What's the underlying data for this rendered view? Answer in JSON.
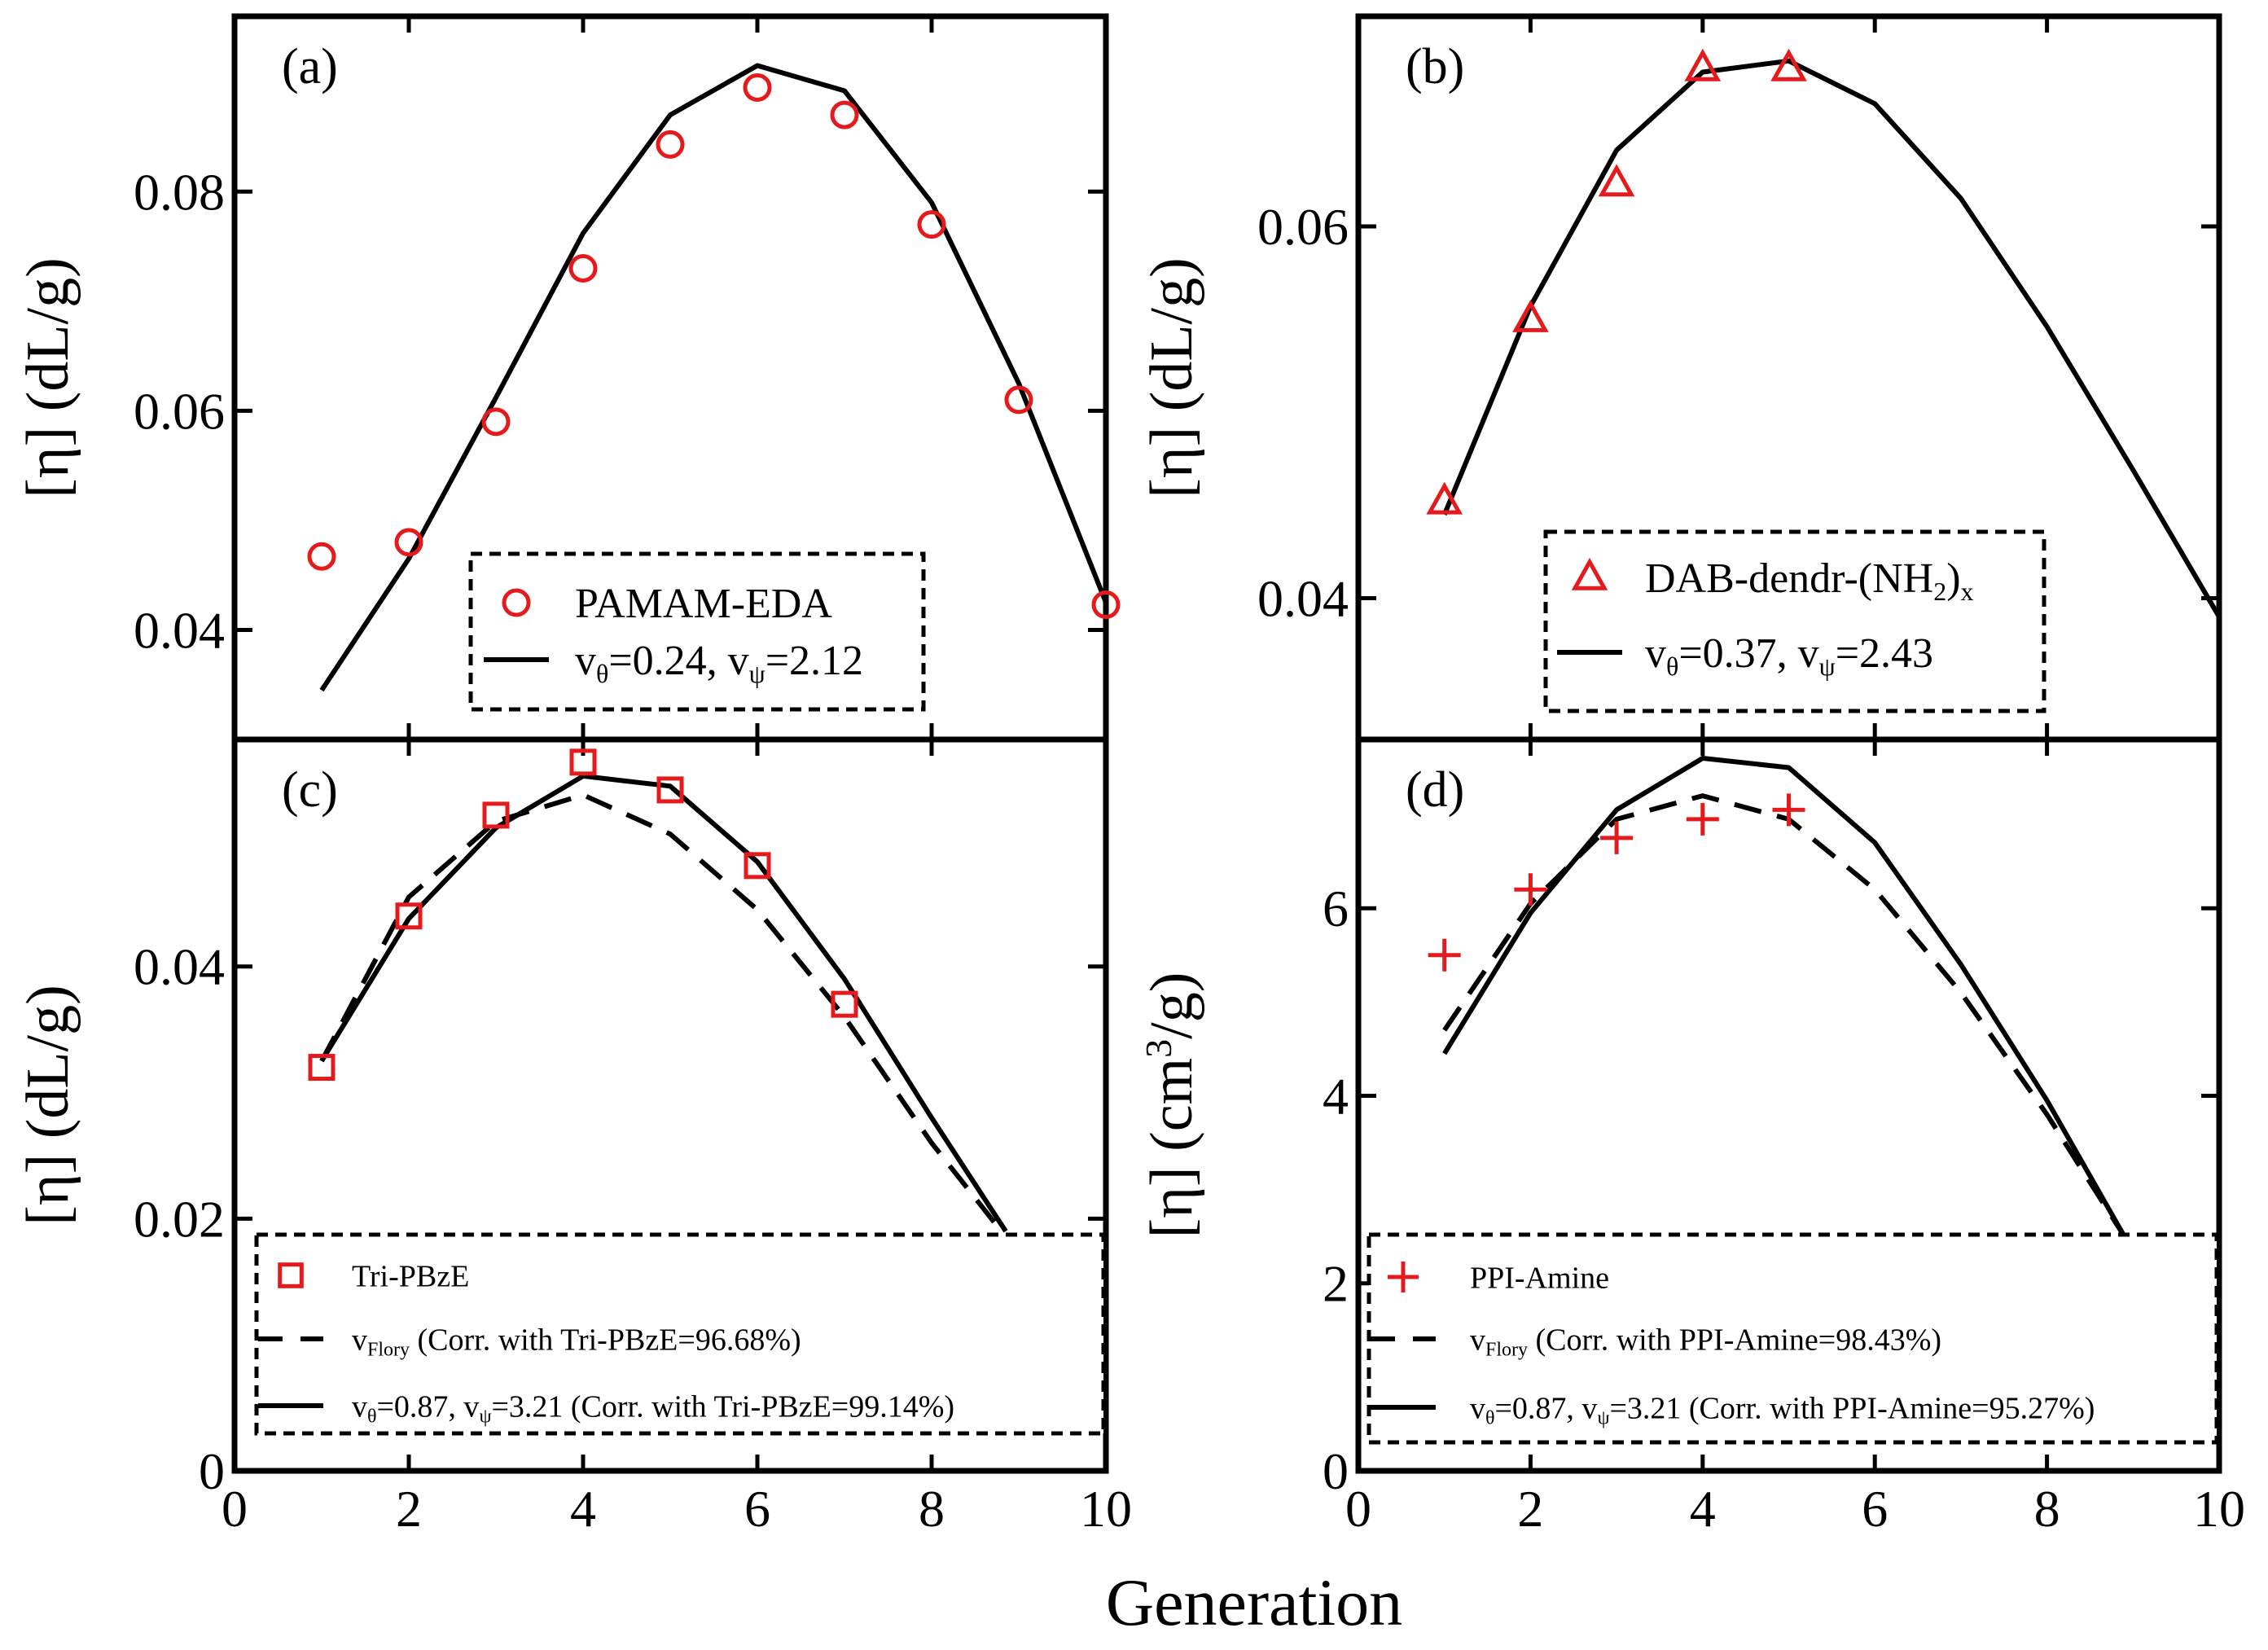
{
  "figure": {
    "shared_xlabel": "Generation"
  },
  "chart_data": [
    {
      "id": "a",
      "type": "line",
      "panel_label": "(a)",
      "ylabel_main": "[η] (dL/g)",
      "xlim": [
        0,
        10
      ],
      "ylim": [
        0.03,
        0.096
      ],
      "yticks": [
        {
          "value": 0.04,
          "label": "0.04"
        },
        {
          "value": 0.06,
          "label": "0.06"
        },
        {
          "value": 0.08,
          "label": "0.08"
        }
      ],
      "xticks": [],
      "series": [
        {
          "name": "PAMAM-EDA",
          "kind": "scatter",
          "marker": "circle",
          "color": "#e41a1c",
          "x": [
            1,
            2,
            3,
            4,
            5,
            6,
            7,
            8,
            9,
            10
          ],
          "y": [
            0.0467,
            0.048,
            0.059,
            0.073,
            0.0843,
            0.0895,
            0.087,
            0.077,
            0.061,
            0.0423
          ]
        },
        {
          "name": "νθ=0.24, νψ=2.12",
          "kind": "line",
          "dash": "solid",
          "color": "#000000",
          "x": [
            1,
            2,
            3,
            4,
            5,
            6,
            7,
            8,
            9,
            10
          ],
          "y": [
            0.0345,
            0.0465,
            0.0612,
            0.0762,
            0.087,
            0.0915,
            0.0892,
            0.079,
            0.0625,
            0.0425
          ]
        }
      ],
      "legend": {
        "placement": "bottom-center",
        "entries": [
          {
            "symbol": "circle",
            "text": "PAMAM-EDA"
          },
          {
            "symbol": "solid",
            "main": "v",
            "sub1": "θ",
            "mid": "=0.24, v",
            "sub2": "ψ",
            "tail": "=2.12"
          }
        ]
      }
    },
    {
      "id": "b",
      "type": "line",
      "panel_label": "(b)",
      "ylabel_main": "[η] (dL/g)",
      "xlim": [
        0,
        10
      ],
      "ylim": [
        0.0324,
        0.0713
      ],
      "yticks": [
        {
          "value": 0.04,
          "label": "0.04"
        },
        {
          "value": 0.06,
          "label": "0.06"
        }
      ],
      "xticks": [],
      "series": [
        {
          "name": "DAB-dendr-(NH2)x",
          "kind": "scatter",
          "marker": "triangle",
          "color": "#e41a1c",
          "x": [
            1,
            2,
            3,
            4,
            5
          ],
          "y": [
            0.0452,
            0.055,
            0.0623,
            0.0685,
            0.0685
          ]
        },
        {
          "name": "νθ=0.37, νψ=2.43",
          "kind": "line",
          "dash": "solid",
          "color": "#000000",
          "x": [
            1,
            2,
            3,
            4,
            5,
            6,
            7,
            8,
            9,
            10
          ],
          "y": [
            0.0445,
            0.0557,
            0.0641,
            0.0683,
            0.0689,
            0.0666,
            0.0615,
            0.0546,
            0.0469,
            0.039
          ]
        }
      ],
      "legend": {
        "placement": "bottom-center",
        "entries": [
          {
            "symbol": "triangle",
            "main": "DAB-dendr-(NH",
            "sub1": "2",
            "tail": ")",
            "sub2": "x"
          },
          {
            "symbol": "solid",
            "main": "v",
            "sub1": "θ",
            "mid": "=0.37, v",
            "sub2": "ψ",
            "tail": "=2.43"
          }
        ]
      }
    },
    {
      "id": "c",
      "type": "line",
      "panel_label": "(c)",
      "ylabel_main": "[η] (dL/g)",
      "xlim": [
        0,
        10
      ],
      "ylim": [
        0,
        0.058
      ],
      "yticks": [
        {
          "value": 0,
          "label": "0"
        },
        {
          "value": 0.02,
          "label": "0.02"
        },
        {
          "value": 0.04,
          "label": "0.04"
        }
      ],
      "xticks": [
        {
          "value": 0,
          "label": "0"
        },
        {
          "value": 2,
          "label": "2"
        },
        {
          "value": 4,
          "label": "4"
        },
        {
          "value": 6,
          "label": "6"
        },
        {
          "value": 8,
          "label": "8"
        },
        {
          "value": 10,
          "label": "10"
        }
      ],
      "series": [
        {
          "name": "Tri-PBzE",
          "kind": "scatter",
          "marker": "square",
          "color": "#e41a1c",
          "x": [
            1,
            2,
            3,
            4,
            5,
            6,
            7
          ],
          "y": [
            0.032,
            0.044,
            0.052,
            0.0562,
            0.054,
            0.048,
            0.037
          ]
        },
        {
          "name": "vFlory",
          "kind": "line",
          "dash": "dashed",
          "color": "#000000",
          "x": [
            1,
            2,
            3,
            4,
            5,
            6,
            7,
            8,
            8.8
          ],
          "y": [
            0.0325,
            0.0455,
            0.0515,
            0.0536,
            0.0505,
            0.0445,
            0.036,
            0.026,
            0.019
          ]
        },
        {
          "name": "νθ=0.87, νψ=3.21",
          "kind": "line",
          "dash": "solid",
          "color": "#000000",
          "x": [
            1,
            2,
            3,
            4,
            5,
            6,
            7,
            8,
            8.85
          ],
          "y": [
            0.0325,
            0.0438,
            0.051,
            0.0551,
            0.0543,
            0.0483,
            0.039,
            0.028,
            0.019
          ]
        }
      ],
      "legend": {
        "placement": "bottom",
        "entries": [
          {
            "symbol": "square",
            "text": "Tri-PBzE"
          },
          {
            "symbol": "dashed",
            "main": "v",
            "sub1": "Flory",
            "tail": " (Corr. with Tri-PBzE=96.68%)"
          },
          {
            "symbol": "solid",
            "main": "v",
            "sub1": "θ",
            "mid": "=0.87, v",
            "sub2": "ψ",
            "tail": "=3.21 (Corr. with Tri-PBzE=99.14%)"
          }
        ]
      }
    },
    {
      "id": "d",
      "type": "line",
      "panel_label": "(d)",
      "ylabel_main": "[η] (cm",
      "ylabel_sup": "3",
      "ylabel_tail": "/g)",
      "xlim": [
        0,
        10
      ],
      "ylim": [
        0,
        7.8
      ],
      "yticks": [
        {
          "value": 0,
          "label": "0"
        },
        {
          "value": 2,
          "label": "2"
        },
        {
          "value": 4,
          "label": "4"
        },
        {
          "value": 6,
          "label": "6"
        }
      ],
      "xticks": [
        {
          "value": 0,
          "label": "0"
        },
        {
          "value": 2,
          "label": "2"
        },
        {
          "value": 4,
          "label": "4"
        },
        {
          "value": 6,
          "label": "6"
        },
        {
          "value": 8,
          "label": "8"
        },
        {
          "value": 10,
          "label": "10"
        }
      ],
      "series": [
        {
          "name": "PPI-Amine",
          "kind": "scatter",
          "marker": "plus",
          "color": "#e41a1c",
          "x": [
            1,
            2,
            3,
            4,
            5
          ],
          "y": [
            5.5,
            6.2,
            6.75,
            6.95,
            7.05
          ]
        },
        {
          "name": "vFlory",
          "kind": "line",
          "dash": "dashed",
          "color": "#000000",
          "x": [
            1,
            2,
            3,
            4,
            5,
            6,
            7,
            8,
            8.9
          ],
          "y": [
            4.7,
            6.05,
            6.95,
            7.2,
            6.95,
            6.2,
            5.1,
            3.8,
            2.5
          ]
        },
        {
          "name": "νθ=0.87, νψ=3.21",
          "kind": "line",
          "dash": "solid",
          "color": "#000000",
          "x": [
            1,
            2,
            3,
            4,
            5,
            6,
            7,
            8,
            8.9
          ],
          "y": [
            4.45,
            5.95,
            7.05,
            7.6,
            7.5,
            6.7,
            5.4,
            3.95,
            2.5
          ]
        }
      ],
      "legend": {
        "placement": "bottom",
        "entries": [
          {
            "symbol": "plus",
            "text": "PPI-Amine"
          },
          {
            "symbol": "dashed",
            "main": "v",
            "sub1": "Flory",
            "tail": " (Corr. with PPI-Amine=98.43%)"
          },
          {
            "symbol": "solid",
            "main": "v",
            "sub1": "θ",
            "mid": "=0.87, v",
            "sub2": "ψ",
            "tail": "=3.21 (Corr. with PPI-Amine=95.27%)"
          }
        ]
      }
    }
  ]
}
